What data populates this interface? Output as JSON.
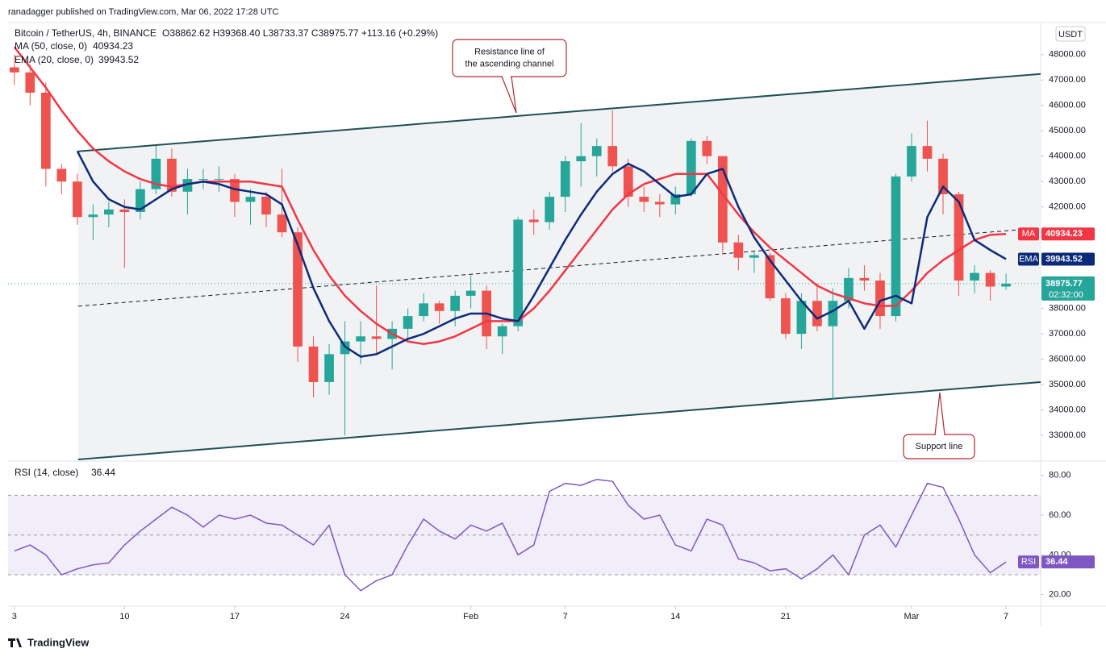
{
  "header": "ranadagger published on TradingView.com, Mar 06, 2022 17:28 UTC",
  "chart_data": {
    "type": "candlestick",
    "symbol": "Bitcoin / TetherUS, 4h, BINANCE",
    "ohlc_text": "O38862.62 H39368.40 L38733.37 C38975.77 +113.16 (+0.29%)",
    "currency": "USDT",
    "x": [
      0,
      1,
      2,
      3,
      4,
      5,
      6,
      7,
      8,
      9,
      10,
      11,
      12,
      13,
      14,
      15,
      16,
      17,
      18,
      19,
      20,
      21,
      22,
      23,
      24,
      25,
      26,
      27,
      28,
      29,
      30,
      31,
      32,
      33,
      34,
      35,
      36,
      37,
      38,
      39,
      40,
      41,
      42,
      43,
      44,
      45,
      46,
      47,
      48,
      49,
      50,
      51,
      52,
      53,
      54,
      55,
      56,
      57,
      58,
      59,
      60,
      61,
      62,
      63
    ],
    "xlim": [
      -0.4,
      65.2
    ],
    "xticks": [
      {
        "value": 0,
        "label": "3"
      },
      {
        "value": 7,
        "label": "10"
      },
      {
        "value": 14,
        "label": "17"
      },
      {
        "value": 21,
        "label": "24"
      },
      {
        "value": 29,
        "label": "Feb"
      },
      {
        "value": 35,
        "label": "7"
      },
      {
        "value": 42,
        "label": "14"
      },
      {
        "value": 49,
        "label": "21"
      },
      {
        "value": 57,
        "label": "Mar"
      },
      {
        "value": 63,
        "label": "7"
      }
    ],
    "open": [
      47500,
      47300,
      46500,
      43500,
      43000,
      41600,
      41700,
      41900,
      41800,
      42700,
      43900,
      42600,
      43100,
      43100,
      43100,
      42200,
      42400,
      41700,
      41000,
      36500,
      35100,
      36200,
      36700,
      36900,
      36800,
      37200,
      37700,
      38200,
      37900,
      38500,
      38700,
      36900,
      37300,
      41500,
      41400,
      42400,
      43800,
      44000,
      44400,
      43600,
      42400,
      42200,
      42100,
      42500,
      44600,
      44000,
      40600,
      40000,
      40100,
      38400,
      37000,
      38300,
      37300,
      38300,
      39200,
      39100,
      37700,
      43200,
      44400,
      43900,
      42500,
      39100,
      39400,
      38862.62
    ],
    "high": [
      48000,
      47600,
      46900,
      43700,
      43300,
      42100,
      42200,
      42300,
      43000,
      44400,
      44300,
      43500,
      43500,
      43600,
      43300,
      42700,
      42600,
      43500,
      41200,
      36900,
      36600,
      37500,
      37500,
      38900,
      37500,
      38000,
      38600,
      38300,
      38700,
      39300,
      38900,
      37400,
      41600,
      41900,
      42600,
      44000,
      45300,
      44700,
      45800,
      43900,
      42800,
      42500,
      42800,
      44700,
      44800,
      44000,
      40900,
      40300,
      40200,
      38600,
      38600,
      39000,
      38800,
      39600,
      39700,
      39400,
      43300,
      44900,
      45400,
      44100,
      42600,
      39700,
      39500,
      39368.4
    ],
    "low": [
      46800,
      46000,
      42800,
      42500,
      41300,
      40700,
      41200,
      39600,
      41500,
      42500,
      42400,
      41700,
      42700,
      42600,
      41600,
      41300,
      41200,
      40800,
      35900,
      34500,
      34600,
      33000,
      35800,
      36200,
      35600,
      36700,
      37500,
      37400,
      37300,
      38000,
      36400,
      36200,
      37100,
      40900,
      41100,
      41800,
      42800,
      43200,
      43400,
      42000,
      41800,
      41600,
      41700,
      42400,
      43700,
      40200,
      39500,
      39400,
      38300,
      36800,
      36400,
      37100,
      34400,
      38000,
      38700,
      37200,
      37500,
      43000,
      43400,
      41700,
      38500,
      38600,
      38300,
      38733.37
    ],
    "close": [
      47300,
      46500,
      43500,
      43000,
      41600,
      41700,
      41900,
      41800,
      42700,
      43900,
      42600,
      43100,
      43100,
      43100,
      42200,
      42400,
      41700,
      41000,
      36500,
      35100,
      36200,
      36700,
      36900,
      36800,
      37200,
      37700,
      38200,
      37900,
      38500,
      38700,
      36900,
      37300,
      41500,
      41400,
      42400,
      43800,
      44000,
      44400,
      43600,
      42400,
      42200,
      42100,
      42500,
      44600,
      44000,
      40600,
      40000,
      40100,
      38400,
      37000,
      38300,
      37300,
      38300,
      39200,
      39100,
      37700,
      43200,
      44400,
      43900,
      42500,
      39100,
      39400,
      38862.62,
      38975.77
    ],
    "up_color": "#26a69a",
    "down_color": "#ef5350",
    "ylim": [
      32050,
      49200
    ],
    "yticks": [
      {
        "value": 33000,
        "label": "33000.00"
      },
      {
        "value": 34000,
        "label": "34000.00"
      },
      {
        "value": 35000,
        "label": "35000.00"
      },
      {
        "value": 36000,
        "label": "36000.00"
      },
      {
        "value": 37000,
        "label": "37000.00"
      },
      {
        "value": 38000,
        "label": "38000.00"
      },
      {
        "value": 39000,
        "label": "39000.00"
      },
      {
        "value": 40000,
        "label": "40000.00"
      },
      {
        "value": 41000,
        "label": "41000.00"
      },
      {
        "value": 42000,
        "label": "42000.00"
      },
      {
        "value": 43000,
        "label": "43000.00"
      },
      {
        "value": 44000,
        "label": "44000.00"
      },
      {
        "value": 45000,
        "label": "45000.00"
      },
      {
        "value": 46000,
        "label": "46000.00"
      },
      {
        "value": 47000,
        "label": "47000.00"
      },
      {
        "value": 48000,
        "label": "48000.00"
      }
    ],
    "grid": false,
    "countdown": "02:32:00",
    "series": [
      {
        "name": "MA (50, close, 0)",
        "label": "MA",
        "color": "#f23645",
        "values": [
          48300,
          47500,
          46700,
          45800,
          45000,
          44300,
          43800,
          43400,
          43100,
          42900,
          42800,
          42900,
          43000,
          43000,
          43000,
          43000,
          42900,
          42800,
          41500,
          40300,
          39300,
          38500,
          37900,
          37400,
          37000,
          36700,
          36600,
          36700,
          36900,
          37200,
          37500,
          37500,
          37500,
          38000,
          38700,
          39500,
          40300,
          41100,
          41900,
          42500,
          42900,
          43100,
          43300,
          43300,
          43300,
          42500,
          41700,
          41000,
          40400,
          39900,
          39400,
          38900,
          38600,
          38400,
          38200,
          38100,
          38100,
          38700,
          39400,
          39900,
          40300,
          40700,
          40900,
          40934.23
        ]
      },
      {
        "name": "EMA (20, close, 0)",
        "label": "EMA",
        "color": "#0c2a7a",
        "values": [
          null,
          null,
          null,
          null,
          44200,
          43000,
          42300,
          42000,
          41900,
          42300,
          42700,
          42900,
          43000,
          42900,
          42700,
          42600,
          42500,
          42100,
          40500,
          38800,
          37500,
          36500,
          36100,
          36200,
          36500,
          36800,
          37000,
          37300,
          37600,
          37800,
          37800,
          37600,
          37500,
          38500,
          39600,
          40700,
          41700,
          42600,
          43300,
          43700,
          43400,
          42900,
          42400,
          42500,
          43300,
          43500,
          42000,
          40800,
          39900,
          39100,
          38300,
          37600,
          37900,
          38300,
          37200,
          38300,
          38500,
          38200,
          41600,
          42800,
          42200,
          40700,
          40300,
          39943.52
        ]
      }
    ],
    "channel": {
      "x": [
        4.05,
        65.2
      ],
      "upper": [
        44190,
        47240
      ],
      "middle": [
        38090,
        41170
      ],
      "lower": [
        32050,
        35100
      ],
      "color": "#1f5057"
    },
    "annotations": [
      {
        "lines": [
          "Resistance line of",
          "the ascending channel"
        ]
      },
      {
        "lines": [
          "Support line"
        ]
      }
    ],
    "rsi": {
      "name": "RSI (14, close)",
      "label": "RSI",
      "color": "#7e57c2",
      "values": [
        42,
        45,
        40,
        30,
        33,
        35,
        36,
        45,
        52,
        58,
        64,
        60,
        54,
        60,
        58,
        60,
        56,
        55,
        50,
        45,
        55,
        30,
        22,
        27,
        30,
        45,
        58,
        52,
        48,
        55,
        52,
        56,
        40,
        45,
        72,
        76,
        75,
        78,
        77,
        65,
        58,
        60,
        45,
        42,
        58,
        55,
        38,
        36,
        32,
        33,
        28,
        33,
        40,
        30,
        50,
        55,
        44,
        60,
        76,
        74,
        58,
        40,
        31,
        36.44
      ],
      "ylim": [
        15,
        86
      ],
      "yticks": [
        {
          "value": 20,
          "label": "20.00"
        },
        {
          "value": 40,
          "label": "40.00"
        },
        {
          "value": 60,
          "label": "60.00"
        },
        {
          "value": 80,
          "label": "80.00"
        }
      ],
      "levels": [
        70,
        50,
        30
      ]
    }
  },
  "footer": "TradingView"
}
